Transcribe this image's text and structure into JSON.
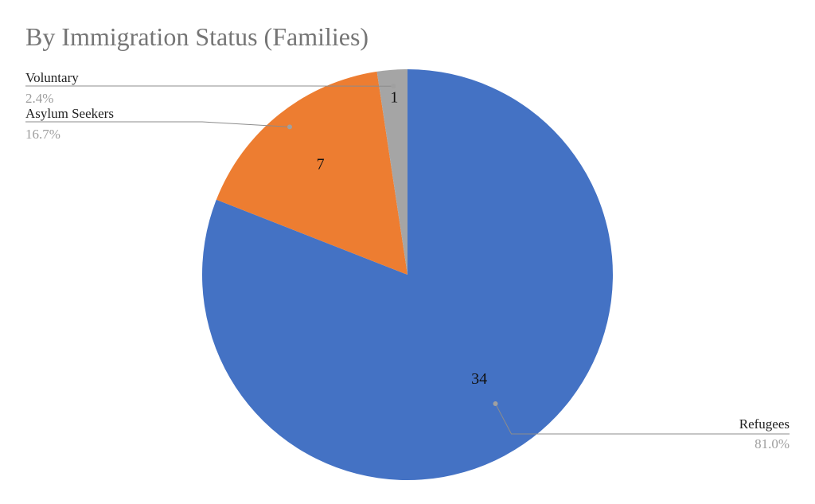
{
  "chart_data": {
    "type": "pie",
    "title": "By Immigration Status (Families)",
    "slices": [
      {
        "label": "Refugees",
        "value": 34,
        "percent": "81.0%",
        "color": "#4472c4"
      },
      {
        "label": "Asylum Seekers",
        "value": 7,
        "percent": "16.7%",
        "color": "#ed7d31"
      },
      {
        "label": "Voluntary",
        "value": 1,
        "percent": "2.4%",
        "color": "#a5a5a5"
      }
    ],
    "start": "12 o'clock",
    "direction": "clockwise",
    "legend": "callout labels with leader lines"
  }
}
